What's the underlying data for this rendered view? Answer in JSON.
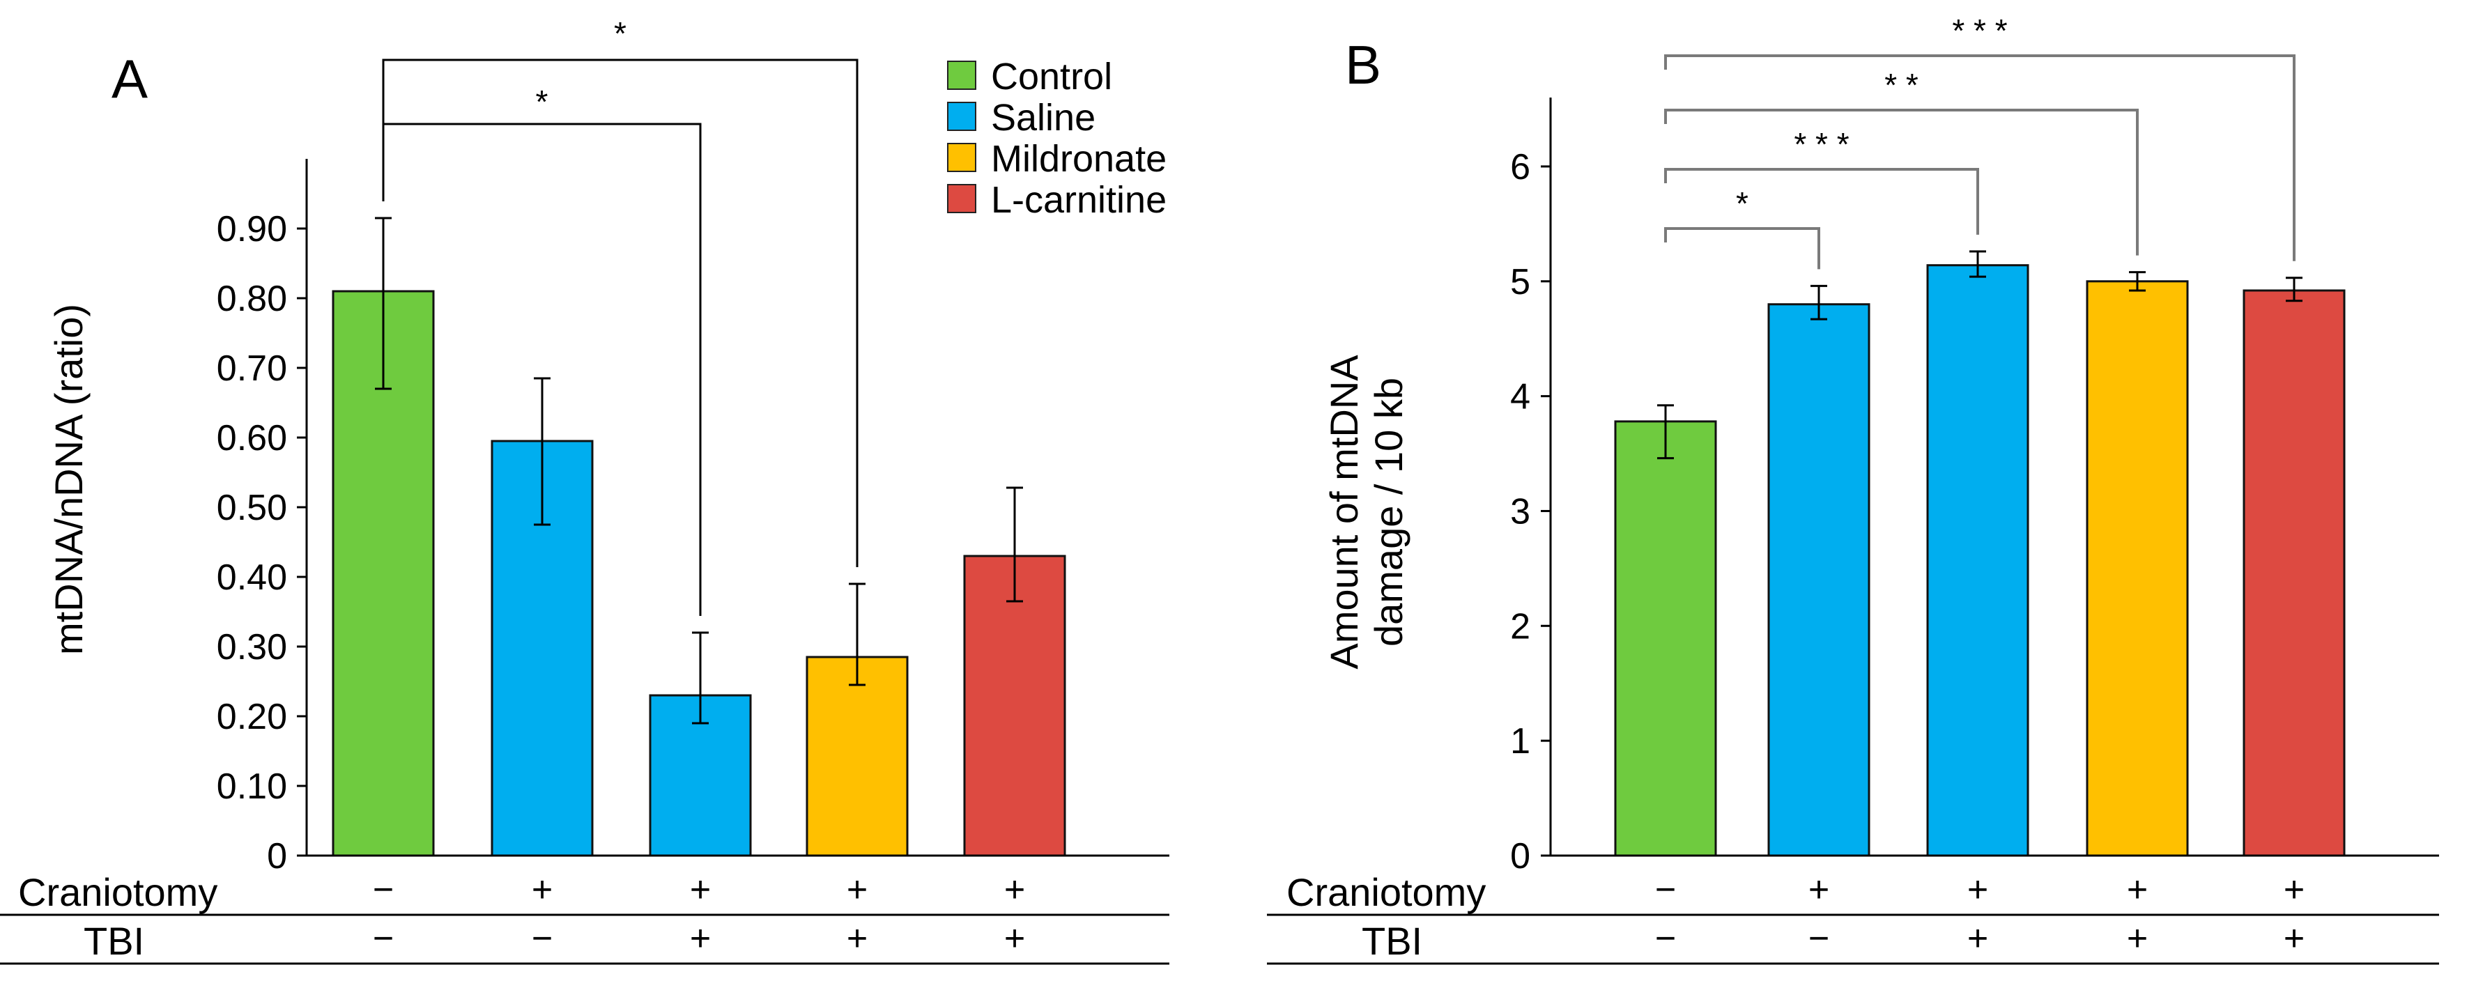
{
  "colors": {
    "Control": "#6fcb3f",
    "Saline": "#00aeef",
    "Mildronate": "#ffc000",
    "L-carnitine": "#dd4a41"
  },
  "chart_data": [
    {
      "panel": "A",
      "type": "bar",
      "ylabel": "mtDNA/nDNA (ratio)",
      "ylim": [
        0,
        1.0
      ],
      "yticks": [
        0,
        0.1,
        0.2,
        0.3,
        0.4,
        0.5,
        0.6,
        0.7,
        0.8,
        0.9
      ],
      "ytick_labels": [
        "0",
        "0.10",
        "0.20",
        "0.30",
        "0.40",
        "0.50",
        "0.60",
        "0.70",
        "0.80",
        "0.90"
      ],
      "bars": [
        {
          "group": "Control",
          "value": 0.81,
          "err_low": 0.67,
          "err_high": 0.915
        },
        {
          "group": "Saline",
          "value": 0.595,
          "err_low": 0.475,
          "err_high": 0.685
        },
        {
          "group": "Saline",
          "value": 0.23,
          "err_low": 0.19,
          "err_high": 0.32
        },
        {
          "group": "Mildronate",
          "value": 0.285,
          "err_low": 0.245,
          "err_high": 0.39
        },
        {
          "group": "L-carnitine",
          "value": 0.43,
          "err_low": 0.365,
          "err_high": 0.528
        }
      ],
      "rows": [
        {
          "label": "Craniotomy",
          "values": [
            "−",
            "+",
            "+",
            "+",
            "+"
          ]
        },
        {
          "label": "TBI",
          "values": [
            "−",
            "−",
            "+",
            "+",
            "+"
          ]
        }
      ],
      "significance": [
        {
          "from": 0,
          "to": 2,
          "label": "*"
        },
        {
          "from": 0,
          "to": 3,
          "label": "*"
        }
      ],
      "legend": [
        "Control",
        "Saline",
        "Mildronate",
        "L-carnitine"
      ],
      "legend_position": "top-right"
    },
    {
      "panel": "B",
      "type": "bar",
      "ylabel_lines": [
        "Amount of mtDNA",
        "damage / 10 kb"
      ],
      "ylim": [
        0,
        6.6
      ],
      "yticks": [
        0,
        1,
        2,
        3,
        4,
        5,
        6
      ],
      "ytick_labels": [
        "0",
        "1",
        "2",
        "3",
        "4",
        "5",
        "6"
      ],
      "bars": [
        {
          "group": "Control",
          "value": 3.78,
          "err_low": 3.46,
          "err_high": 3.92
        },
        {
          "group": "Saline",
          "value": 4.8,
          "err_low": 4.67,
          "err_high": 4.96
        },
        {
          "group": "Saline",
          "value": 5.14,
          "err_low": 5.04,
          "err_high": 5.26
        },
        {
          "group": "Mildronate",
          "value": 5.0,
          "err_low": 4.92,
          "err_high": 5.08
        },
        {
          "group": "L-carnitine",
          "value": 4.92,
          "err_low": 4.83,
          "err_high": 5.03
        }
      ],
      "rows": [
        {
          "label": "Craniotomy",
          "values": [
            "−",
            "+",
            "+",
            "+",
            "+"
          ]
        },
        {
          "label": "TBI",
          "values": [
            "−",
            "−",
            "+",
            "+",
            "+"
          ]
        }
      ],
      "significance": [
        {
          "from": 0,
          "to": 1,
          "label": "*"
        },
        {
          "from": 0,
          "to": 2,
          "label": "* * *"
        },
        {
          "from": 0,
          "to": 3,
          "label": "* *"
        },
        {
          "from": 0,
          "to": 4,
          "label": "* * *"
        }
      ]
    }
  ]
}
